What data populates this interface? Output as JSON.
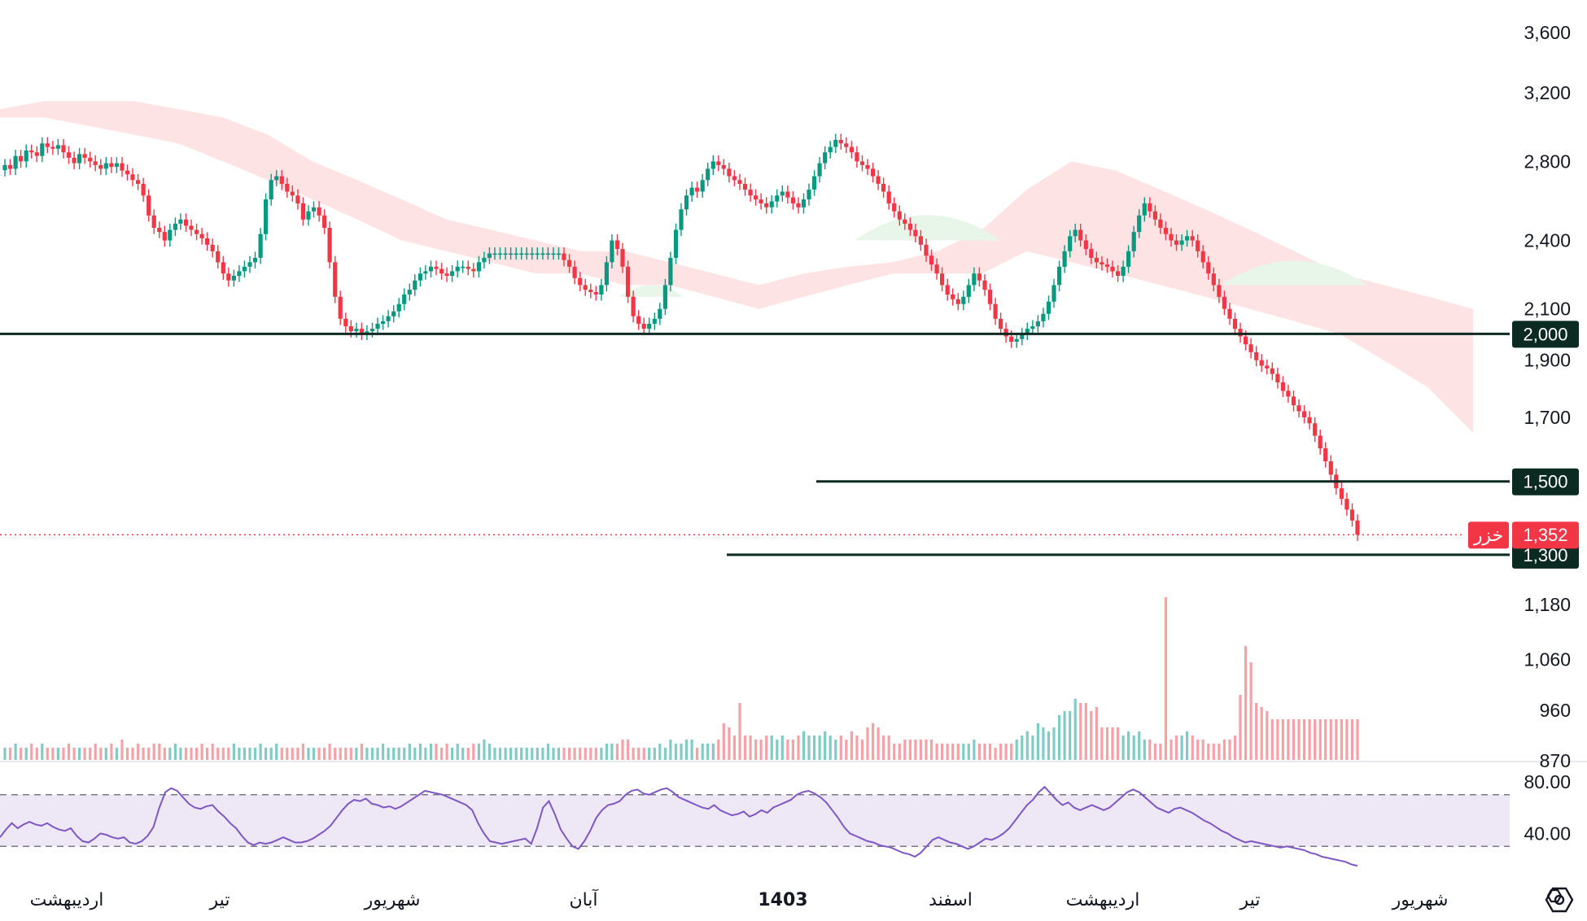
{
  "chart_data": {
    "type": "candlestick",
    "ticker": "خزر",
    "last_price": 1352,
    "last_price_label": "1,352",
    "colors": {
      "up": "#089981",
      "down": "#f23645",
      "level_line": "#0b2a22",
      "cloud_bear": "#fde0e0",
      "cloud_bull": "#e8f5e9",
      "rsi_line": "#7e57c2",
      "rsi_band": "#ede7f6",
      "vol_up": "#80cbc4",
      "vol_down": "#f7a1a6"
    },
    "price_axis": {
      "scale": "log",
      "ticks": [
        "3,600",
        "3,200",
        "2,800",
        "2,400",
        "2,100",
        "1,900",
        "1,700",
        "1,180",
        "1,060",
        "960",
        "870"
      ],
      "tick_values": [
        3600,
        3200,
        2800,
        2400,
        2100,
        1900,
        1700,
        1180,
        1060,
        960,
        870
      ]
    },
    "levels": [
      {
        "value": 2000,
        "label": "2,000"
      },
      {
        "value": 1500,
        "label": "1,500"
      },
      {
        "value": 1300,
        "label": "1,300"
      }
    ],
    "rsi": {
      "ticks": [
        "80.00",
        "40.00"
      ],
      "tick_values": [
        80,
        40
      ],
      "band": [
        70,
        30
      ],
      "series": [
        37,
        43,
        48,
        44,
        47,
        49,
        47,
        46,
        48,
        45,
        43,
        42,
        44,
        38,
        34,
        33,
        36,
        40,
        39,
        37,
        36,
        37,
        33,
        32,
        34,
        38,
        45,
        60,
        72,
        75,
        73,
        68,
        63,
        60,
        59,
        61,
        62,
        57,
        53,
        48,
        44,
        38,
        33,
        31,
        33,
        32,
        33,
        35,
        37,
        35,
        33,
        33,
        34,
        36,
        39,
        42,
        46,
        52,
        58,
        63,
        66,
        65,
        67,
        63,
        62,
        60,
        61,
        59,
        61,
        64,
        67,
        70,
        73,
        72,
        71,
        70,
        68,
        66,
        64,
        62,
        58,
        48,
        40,
        34,
        33,
        32,
        33,
        34,
        35,
        36,
        32,
        44,
        60,
        65,
        55,
        43,
        36,
        30,
        28,
        34,
        42,
        52,
        58,
        62,
        63,
        65,
        70,
        73,
        74,
        71,
        70,
        72,
        74,
        75,
        72,
        68,
        66,
        64,
        62,
        60,
        59,
        62,
        58,
        56,
        54,
        55,
        57,
        53,
        55,
        58,
        56,
        60,
        62,
        64,
        66,
        70,
        72,
        73,
        71,
        68,
        64,
        58,
        52,
        45,
        40,
        38,
        36,
        34,
        33,
        31,
        30,
        29,
        27,
        25,
        24,
        22,
        25,
        30,
        35,
        37,
        35,
        33,
        32,
        30,
        28,
        30,
        33,
        36,
        35,
        37,
        40,
        44,
        50,
        56,
        62,
        66,
        72,
        76,
        71,
        66,
        62,
        64,
        60,
        58,
        60,
        62,
        60,
        58,
        60,
        64,
        68,
        72,
        74,
        72,
        68,
        64,
        60,
        58,
        56,
        59,
        60,
        58,
        56,
        53,
        50,
        48,
        45,
        42,
        40,
        37,
        35,
        33,
        34,
        33,
        32,
        31,
        30,
        29,
        30,
        29,
        28,
        27,
        25,
        24,
        22,
        21,
        20,
        19,
        18,
        16,
        15
      ]
    },
    "time_axis": {
      "labels": [
        "اردیبهشت",
        "تیر",
        "شهریور",
        "آبان",
        "1403",
        "اسفند",
        "اردیبهشت",
        "تیر",
        "شهریور"
      ],
      "bold_label": "1403"
    },
    "series_close": [
      2780,
      2760,
      2830,
      2800,
      2860,
      2850,
      2830,
      2900,
      2880,
      2870,
      2890,
      2850,
      2820,
      2790,
      2840,
      2820,
      2800,
      2780,
      2760,
      2790,
      2770,
      2790,
      2750,
      2730,
      2700,
      2680,
      2620,
      2520,
      2460,
      2440,
      2400,
      2450,
      2480,
      2500,
      2470,
      2450,
      2430,
      2410,
      2380,
      2350,
      2300,
      2250,
      2220,
      2240,
      2260,
      2280,
      2300,
      2320,
      2430,
      2600,
      2700,
      2720,
      2680,
      2640,
      2620,
      2580,
      2500,
      2540,
      2560,
      2520,
      2460,
      2300,
      2150,
      2060,
      2030,
      2010,
      2020,
      2000,
      2010,
      2020,
      2040,
      2050,
      2070,
      2090,
      2120,
      2160,
      2180,
      2220,
      2250,
      2260,
      2280,
      2270,
      2250,
      2240,
      2260,
      2280,
      2280,
      2270,
      2260,
      2300,
      2320,
      2340,
      2340,
      2340,
      2340,
      2340,
      2340,
      2340,
      2340,
      2340,
      2340,
      2340,
      2340,
      2340,
      2340,
      2310,
      2280,
      2230,
      2200,
      2180,
      2170,
      2160,
      2200,
      2300,
      2400,
      2360,
      2280,
      2150,
      2070,
      2040,
      2020,
      2040,
      2060,
      2100,
      2200,
      2320,
      2450,
      2550,
      2620,
      2660,
      2640,
      2700,
      2760,
      2800,
      2780,
      2760,
      2720,
      2700,
      2680,
      2650,
      2620,
      2600,
      2580,
      2560,
      2590,
      2620,
      2640,
      2610,
      2580,
      2560,
      2600,
      2650,
      2720,
      2790,
      2850,
      2880,
      2920,
      2900,
      2880,
      2850,
      2800,
      2780,
      2760,
      2720,
      2680,
      2640,
      2580,
      2540,
      2500,
      2480,
      2450,
      2420,
      2380,
      2330,
      2290,
      2250,
      2200,
      2160,
      2140,
      2120,
      2150,
      2200,
      2250,
      2220,
      2180,
      2120,
      2060,
      2020,
      1990,
      1970,
      1980,
      2000,
      2020,
      2030,
      2050,
      2080,
      2130,
      2200,
      2280,
      2350,
      2420,
      2450,
      2400,
      2360,
      2320,
      2300,
      2290,
      2280,
      2260,
      2240,
      2280,
      2350,
      2440,
      2520,
      2580,
      2540,
      2500,
      2460,
      2430,
      2400,
      2380,
      2400,
      2420,
      2400,
      2350,
      2300,
      2250,
      2200,
      2150,
      2100,
      2060,
      2020,
      1990,
      1960,
      1930,
      1900,
      1880,
      1870,
      1850,
      1820,
      1790,
      1770,
      1740,
      1720,
      1700,
      1680,
      1640,
      1600,
      1560,
      1520,
      1480,
      1450,
      1420,
      1390,
      1352
    ],
    "volume_series": [
      3,
      3,
      4,
      3,
      3,
      4,
      3,
      4,
      3,
      3,
      3,
      3,
      4,
      3,
      3,
      3,
      3,
      4,
      3,
      3,
      4,
      3,
      5,
      3,
      3,
      4,
      3,
      3,
      4,
      4,
      3,
      3,
      4,
      3,
      3,
      3,
      3,
      4,
      3,
      4,
      3,
      3,
      3,
      4,
      3,
      3,
      3,
      3,
      4,
      3,
      3,
      4,
      3,
      3,
      3,
      3,
      4,
      3,
      3,
      3,
      3,
      4,
      3,
      3,
      3,
      3,
      3,
      4,
      3,
      3,
      3,
      4,
      3,
      3,
      3,
      3,
      4,
      3,
      4,
      3,
      4,
      4,
      3,
      4,
      3,
      4,
      3,
      3,
      4,
      4,
      5,
      4,
      3,
      3,
      3,
      3,
      3,
      3,
      3,
      3,
      3,
      3,
      4,
      3,
      3,
      3,
      3,
      3,
      3,
      3,
      3,
      3,
      3,
      4,
      4,
      4,
      5,
      5,
      3,
      3,
      3,
      3,
      3,
      4,
      3,
      5,
      4,
      4,
      5,
      5,
      3,
      4,
      4,
      4,
      5,
      9,
      8,
      6,
      14,
      6,
      6,
      5,
      5,
      6,
      6,
      5,
      6,
      5,
      5,
      6,
      7,
      6,
      6,
      6,
      7,
      6,
      5,
      6,
      5,
      7,
      6,
      5,
      8,
      9,
      8,
      6,
      6,
      4,
      4,
      5,
      5,
      5,
      5,
      5,
      5,
      4,
      4,
      4,
      4,
      4,
      4,
      4,
      5,
      4,
      4,
      4,
      3,
      4,
      4,
      4,
      5,
      6,
      7,
      6,
      9,
      8,
      7,
      8,
      11,
      12,
      12,
      15,
      14,
      14,
      12,
      13,
      8,
      8,
      8,
      8,
      6,
      7,
      6,
      7,
      5,
      5,
      4,
      4,
      40,
      5,
      6,
      6,
      7,
      6,
      5,
      5,
      4,
      4,
      4,
      5,
      5,
      6,
      16,
      28,
      24,
      14,
      13,
      12,
      10
    ],
    "ichimoku_bear_top": [
      3100,
      3150,
      3150,
      3150,
      3100,
      3050,
      2950,
      2800,
      2700,
      2600,
      2500,
      2450,
      2400,
      2350,
      2350,
      2300,
      2250,
      2200,
      2250,
      2280,
      2300,
      2350,
      2450,
      2650,
      2800,
      2750,
      2650,
      2550,
      2450,
      2350,
      2250,
      2200,
      2150,
      2100
    ],
    "ichimoku_bear_bottom": [
      3050,
      3050,
      3000,
      2950,
      2900,
      2800,
      2700,
      2600,
      2500,
      2400,
      2350,
      2300,
      2250,
      2250,
      2200,
      2200,
      2150,
      2100,
      2150,
      2200,
      2250,
      2250,
      2250,
      2350,
      2300,
      2250,
      2200,
      2150,
      2100,
      2050,
      2000,
      1900,
      1800,
      1650
    ]
  }
}
